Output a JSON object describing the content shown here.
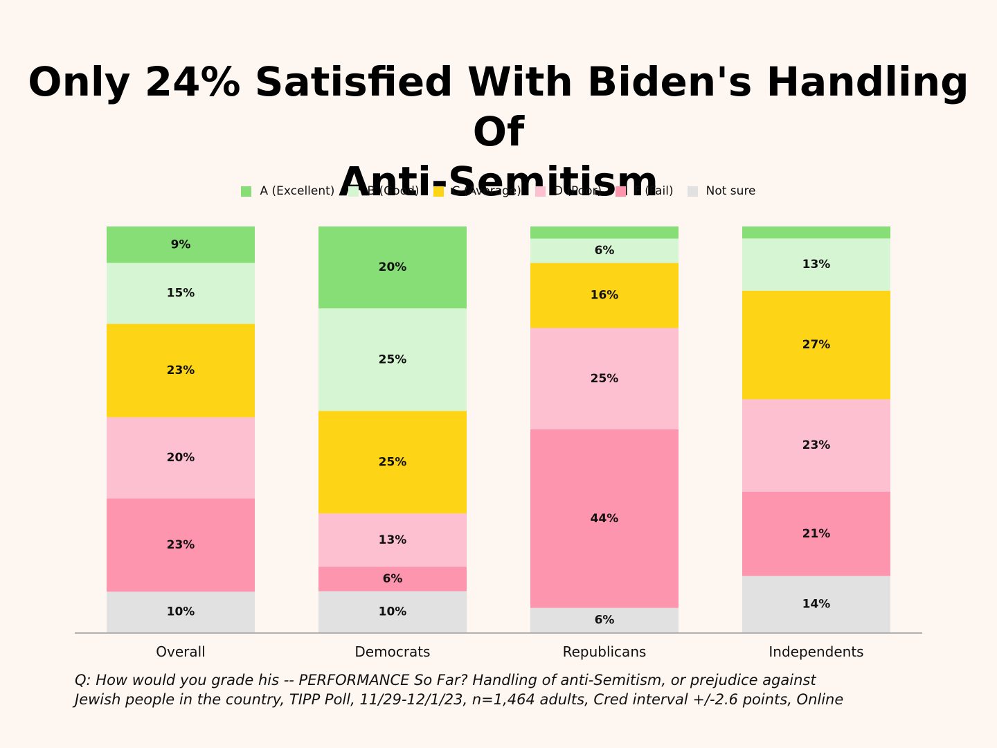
{
  "chart_data": {
    "type": "bar",
    "stacked": true,
    "title_lines": [
      "Only 24% Satisfied With Biden's Handling Of",
      "Anti-Semitism"
    ],
    "categories": [
      "Overall",
      "Democrats",
      "Republicans",
      "Independents"
    ],
    "series": [
      {
        "name": "A (Excellent)",
        "color": "#87de76",
        "values": [
          9,
          20,
          3,
          3
        ],
        "labels": [
          "9%",
          "20%",
          "",
          ""
        ]
      },
      {
        "name": "B (Good)",
        "color": "#d6f5d2",
        "values": [
          15,
          25,
          6,
          13
        ],
        "labels": [
          "15%",
          "25%",
          "6%",
          "13%"
        ]
      },
      {
        "name": "C (Average)",
        "color": "#fdd516",
        "values": [
          23,
          25,
          16,
          27
        ],
        "labels": [
          "23%",
          "25%",
          "16%",
          "27%"
        ]
      },
      {
        "name": "D (Poor)",
        "color": "#fdc0d0",
        "values": [
          20,
          13,
          25,
          23
        ],
        "labels": [
          "20%",
          "13%",
          "25%",
          "23%"
        ]
      },
      {
        "name": "F (Fail)",
        "color": "#fd95ae",
        "values": [
          23,
          6,
          44,
          21
        ],
        "labels": [
          "23%",
          "6%",
          "44%",
          "21%"
        ]
      },
      {
        "name": "Not sure",
        "color": "#e1e1e1",
        "values": [
          10,
          10,
          6,
          14
        ],
        "labels": [
          "10%",
          "10%",
          "6%",
          "14%"
        ]
      }
    ],
    "legend_position": "top-center",
    "axis_color": "#b0b0b0"
  },
  "footnote": {
    "line1": "Q:  How would you grade his -- PERFORMANCE So Far? Handling of anti-Semitism, or prejudice against",
    "line2": "Jewish people in the country, TIPP Poll, 11/29-12/1/23, n=1,464 adults, Cred interval +/-2.6 points, Online"
  }
}
